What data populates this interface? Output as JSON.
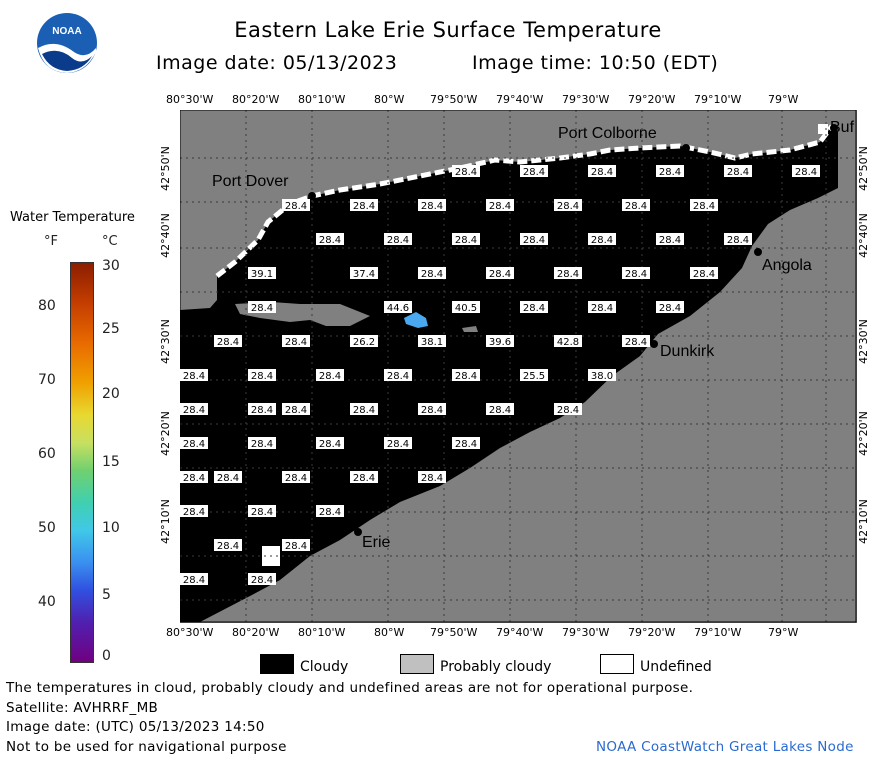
{
  "header": {
    "title": "Eastern Lake Erie Surface Temperature",
    "image_date": "Image date: 05/13/2023",
    "image_time": "Image time: 10:50 (EDT)",
    "logo_text": "NOAA"
  },
  "map": {
    "lon_labels": [
      "80°30'W",
      "80°20'W",
      "80°10'W",
      "80°W",
      "79°50'W",
      "79°40'W",
      "79°30'W",
      "79°20'W",
      "79°10'W",
      "79°W"
    ],
    "lat_labels": [
      "42°50'N",
      "42°40'N",
      "42°30'N",
      "42°20'N",
      "42°10'N"
    ],
    "places": {
      "port_colborne": "Port Colborne",
      "port_dover": "Port Dover",
      "angola": "Angola",
      "dunkirk": "Dunkirk",
      "erie": "Erie",
      "buffalo": "Buf"
    },
    "temps": [
      "28.4",
      "28.4",
      "28.4",
      "28.4",
      "28.4",
      "28.4",
      "28.4",
      "28.4",
      "28.4",
      "28.4",
      "28.4",
      "28.4",
      "28.4",
      "28.4",
      "28.4",
      "28.4",
      "28.4",
      "28.4",
      "28.4",
      "28.4",
      "39.1",
      "37.4",
      "28.4",
      "28.4",
      "28.4",
      "28.4",
      "28.4",
      "28.4",
      "44.6",
      "40.5",
      "28.4",
      "28.4",
      "28.4",
      "28.4",
      "28.4",
      "26.2",
      "38.1",
      "39.6",
      "42.8",
      "28.4",
      "28.4",
      "28.4",
      "28.4",
      "28.4",
      "28.4",
      "25.5",
      "38.0",
      "28.4",
      "28.4",
      "28.4",
      "28.4",
      "28.4",
      "28.4",
      "28.4",
      "28.4",
      "28.4",
      "28.4",
      "28.4",
      "28.4",
      "28.4",
      "28.4",
      "28.4",
      "28.4",
      "28.4",
      "28.4",
      "28.4",
      "28.4",
      "28.4",
      "28.4",
      "28.4",
      "28.4"
    ],
    "colors": {
      "cloudy": "#000000",
      "probably_cloudy": "#808080",
      "undefined": "#ffffff",
      "land": "#808080",
      "warm_water": "#4aa8f0"
    }
  },
  "colorbar": {
    "title": "Water Temperature",
    "unit_f": "°F",
    "unit_c": "°C",
    "f_ticks": [
      "80",
      "70",
      "60",
      "50",
      "40"
    ],
    "c_ticks": [
      "30",
      "25",
      "20",
      "15",
      "10",
      "5",
      "0"
    ]
  },
  "legend": {
    "cloudy": "Cloudy",
    "probably_cloudy": "Probably cloudy",
    "undefined": "Undefined"
  },
  "footer": {
    "note": "The temperatures in cloud, probably cloudy and undefined areas are not for operational purpose.",
    "satellite": "Satellite: AVHRRF_MB",
    "utc": "Image date: (UTC) 05/13/2023  14:50",
    "nav": "Not to be used for navigational purpose",
    "credit": "NOAA CoastWatch Great Lakes Node"
  }
}
